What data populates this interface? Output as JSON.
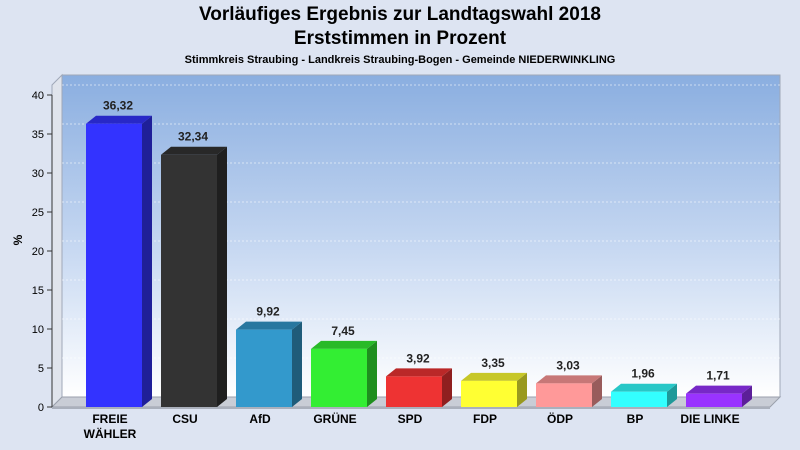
{
  "title": "Vorläufiges Ergebnis zur Landtagswahl 2018",
  "subtitle": "Erststimmen in Prozent",
  "caption": "Stimmkreis Straubing - Landkreis Straubing-Bogen - Gemeinde NIEDERWINKLING",
  "chart_data": {
    "type": "bar",
    "ylabel": "%",
    "ylim": [
      0,
      40
    ],
    "yticks": [
      0,
      5,
      10,
      15,
      20,
      25,
      30,
      35,
      40
    ],
    "grid": true,
    "categories": [
      {
        "line1": "FREIE",
        "line2": "WÄHLER"
      },
      {
        "line1": "CSU",
        "line2": ""
      },
      {
        "line1": "AfD",
        "line2": ""
      },
      {
        "line1": "GRÜNE",
        "line2": ""
      },
      {
        "line1": "SPD",
        "line2": ""
      },
      {
        "line1": "FDP",
        "line2": ""
      },
      {
        "line1": "ÖDP",
        "line2": ""
      },
      {
        "line1": "BP",
        "line2": ""
      },
      {
        "line1": "DIE LINKE",
        "line2": ""
      }
    ],
    "values": [
      36.32,
      32.34,
      9.92,
      7.45,
      3.92,
      3.35,
      3.03,
      1.96,
      1.71
    ],
    "value_labels": [
      "36,32",
      "32,34",
      "9,92",
      "7,45",
      "3,92",
      "3,35",
      "3,03",
      "1,96",
      "1,71"
    ],
    "colors": [
      "#3333ff",
      "#333333",
      "#3399cc",
      "#33ee33",
      "#ee3333",
      "#ffff33",
      "#ff9999",
      "#33ffff",
      "#9933ff"
    ]
  }
}
